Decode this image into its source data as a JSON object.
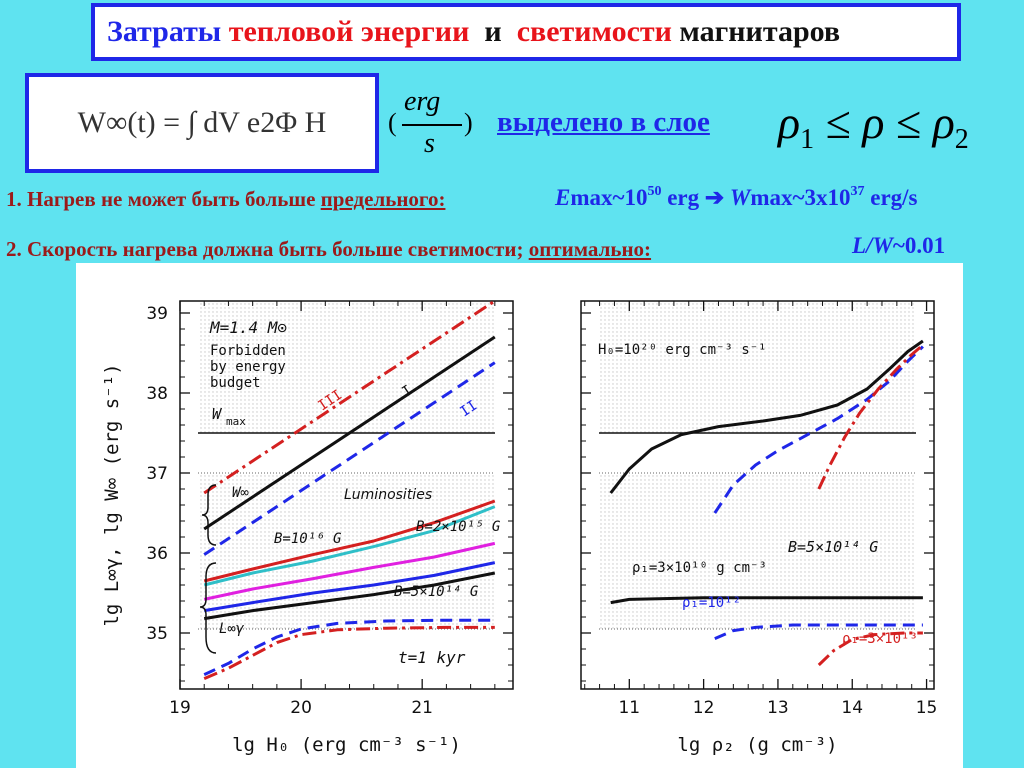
{
  "header": {
    "title_part1": "Затраты ",
    "title_part2": "тепловой энергии ",
    "title_part3": " и ",
    "title_part4": " светимости",
    "title_part5": " магнитаров",
    "colors": {
      "blue": "#1f27e8",
      "red": "#e8141b",
      "dark": "#111111"
    }
  },
  "formula": {
    "text": "W∞(t) = ∫ dV e2Φ H",
    "unit_num": "erg",
    "unit_den": "s",
    "unit_lparen": "(",
    "unit_rparen": ")"
  },
  "layer_text": "выделено в слое",
  "rho_inequality": {
    "rho": "ρ",
    "sub1": "1",
    "sub2": "2",
    "leq": "≤"
  },
  "item1": {
    "text": "1. Нагрев не может быть больше ",
    "underlined": "предельного:",
    "emax_E": "E",
    "emax_text": "max~10",
    "emax_exp": "50",
    "emax_unit": " erg ",
    "arrow": "➔",
    "wmax_W": "W",
    "wmax_text": "max~3x10",
    "wmax_exp": "37",
    "wmax_unit": " erg/s"
  },
  "item2": {
    "text": "2. Скорость нагрева должна быть больше светимости;   ",
    "underlined": "оптимально:",
    "lw": "L/W",
    "lw_value": "~0.01"
  },
  "chart_data": [
    {
      "type": "line",
      "xlabel": "lg H₀   (erg cm⁻³ s⁻¹)",
      "ylabel": "lg L∞γ, lg W∞  (erg s⁻¹)",
      "xlim": [
        19,
        21.75
      ],
      "ylim": [
        34.3,
        39.15
      ],
      "x_ticks": [
        "19",
        "20",
        "21"
      ],
      "y_ticks": [
        "35",
        "36",
        "37",
        "38",
        "39"
      ],
      "grid": false,
      "annotations": {
        "mass": "M=1.4 M⊙",
        "forbidden1": "Forbidden",
        "forbidden2": "by energy",
        "forbidden3": "budget",
        "wmax": "W",
        "wmax_sub": "max",
        "winf": "W∞",
        "lum": "Luminosities",
        "b1": "B=10¹⁶ G",
        "b2": "B=2×10¹⁵ G",
        "b3": "B=5×10¹⁴ G",
        "linf": "L∞γ",
        "time": "t=1  kyr",
        "lab_III": "III",
        "lab_I": "I",
        "lab_II": "II"
      },
      "wmax_level": 37.5,
      "series": [
        {
          "name": "III",
          "color": "#d42020",
          "dash": "14,5,3,5",
          "points": [
            [
              19.2,
              36.75
            ],
            [
              21.6,
              39.15
            ]
          ]
        },
        {
          "name": "I",
          "color": "#111111",
          "dash": "",
          "points": [
            [
              19.2,
              36.3
            ],
            [
              21.6,
              38.7
            ]
          ]
        },
        {
          "name": "II",
          "color": "#1f27e8",
          "dash": "12,7",
          "points": [
            [
              19.2,
              35.98
            ],
            [
              21.6,
              38.38
            ]
          ]
        },
        {
          "color": "#d42020",
          "dash": "",
          "points": [
            [
              19.2,
              35.65
            ],
            [
              19.6,
              35.8
            ],
            [
              20.1,
              35.98
            ],
            [
              20.6,
              36.15
            ],
            [
              21.1,
              36.38
            ],
            [
              21.6,
              36.65
            ]
          ]
        },
        {
          "color": "#2fbfc8",
          "dash": "",
          "points": [
            [
              19.2,
              35.6
            ],
            [
              19.6,
              35.75
            ],
            [
              20.1,
              35.9
            ],
            [
              20.6,
              36.08
            ],
            [
              21.1,
              36.28
            ],
            [
              21.6,
              36.58
            ]
          ]
        },
        {
          "color": "#e020e0",
          "dash": "",
          "points": [
            [
              19.2,
              35.42
            ],
            [
              19.6,
              35.55
            ],
            [
              20.1,
              35.68
            ],
            [
              20.6,
              35.82
            ],
            [
              21.1,
              35.95
            ],
            [
              21.6,
              36.12
            ]
          ]
        },
        {
          "color": "#1f27e8",
          "dash": "",
          "points": [
            [
              19.2,
              35.28
            ],
            [
              19.6,
              35.38
            ],
            [
              20.1,
              35.5
            ],
            [
              20.6,
              35.6
            ],
            [
              21.1,
              35.72
            ],
            [
              21.6,
              35.88
            ]
          ]
        },
        {
          "color": "#111111",
          "dash": "",
          "points": [
            [
              19.2,
              35.18
            ],
            [
              19.6,
              35.28
            ],
            [
              20.1,
              35.38
            ],
            [
              20.6,
              35.48
            ],
            [
              21.1,
              35.6
            ],
            [
              21.6,
              35.75
            ]
          ]
        },
        {
          "color": "#1f27e8",
          "dash": "12,7",
          "points": [
            [
              19.2,
              34.48
            ],
            [
              19.4,
              34.62
            ],
            [
              19.6,
              34.8
            ],
            [
              19.8,
              34.95
            ],
            [
              20.0,
              35.05
            ],
            [
              20.3,
              35.12
            ],
            [
              20.7,
              35.15
            ],
            [
              21.2,
              35.16
            ],
            [
              21.6,
              35.16
            ]
          ]
        },
        {
          "color": "#d42020",
          "dash": "14,5,3,5",
          "points": [
            [
              19.2,
              34.43
            ],
            [
              19.4,
              34.56
            ],
            [
              19.6,
              34.72
            ],
            [
              19.8,
              34.88
            ],
            [
              20.0,
              34.98
            ],
            [
              20.3,
              35.04
            ],
            [
              20.7,
              35.06
            ],
            [
              21.2,
              35.07
            ],
            [
              21.6,
              35.07
            ]
          ]
        }
      ]
    },
    {
      "type": "line",
      "xlabel": "lg ρ₂   (g cm⁻³)",
      "xlim": [
        10.35,
        15.1
      ],
      "ylim": [
        34.3,
        39.15
      ],
      "x_ticks": [
        "11",
        "12",
        "13",
        "14",
        "15"
      ],
      "grid": false,
      "annotations": {
        "h0": "H₀=10²⁰  erg cm⁻³ s⁻¹",
        "b": "B=5×10¹⁴  G",
        "rho_a": "ρ₁=3×10¹⁰  g cm⁻³",
        "rho_b": "ρ₁=10¹²",
        "rho_c": "ρ₁=3×10¹³"
      },
      "wmax_level": 37.5,
      "series": [
        {
          "color": "#111111",
          "dash": "",
          "points": [
            [
              10.75,
              36.75
            ],
            [
              11.0,
              37.05
            ],
            [
              11.3,
              37.3
            ],
            [
              11.7,
              37.48
            ],
            [
              12.2,
              37.58
            ],
            [
              12.8,
              37.65
            ],
            [
              13.3,
              37.72
            ],
            [
              13.8,
              37.85
            ],
            [
              14.2,
              38.05
            ],
            [
              14.5,
              38.3
            ],
            [
              14.75,
              38.52
            ],
            [
              14.95,
              38.65
            ]
          ]
        },
        {
          "color": "#1f27e8",
          "dash": "12,7",
          "points": [
            [
              12.15,
              36.5
            ],
            [
              12.4,
              36.85
            ],
            [
              12.7,
              37.1
            ],
            [
              13.0,
              37.28
            ],
            [
              13.4,
              37.48
            ],
            [
              13.8,
              37.68
            ],
            [
              14.2,
              37.92
            ],
            [
              14.5,
              38.15
            ],
            [
              14.75,
              38.4
            ],
            [
              14.95,
              38.58
            ]
          ]
        },
        {
          "color": "#d42020",
          "dash": "14,5,3,5",
          "points": [
            [
              13.55,
              36.8
            ],
            [
              13.7,
              37.1
            ],
            [
              13.9,
              37.45
            ],
            [
              14.1,
              37.75
            ],
            [
              14.35,
              38.05
            ],
            [
              14.6,
              38.3
            ],
            [
              14.8,
              38.48
            ],
            [
              14.95,
              38.6
            ]
          ]
        },
        {
          "color": "#111111",
          "dash": "",
          "points": [
            [
              10.75,
              35.38
            ],
            [
              11.0,
              35.42
            ],
            [
              12.0,
              35.44
            ],
            [
              13.0,
              35.44
            ],
            [
              14.0,
              35.44
            ],
            [
              14.95,
              35.44
            ]
          ]
        },
        {
          "color": "#1f27e8",
          "dash": "12,7",
          "points": [
            [
              12.15,
              34.93
            ],
            [
              12.4,
              35.03
            ],
            [
              12.7,
              35.07
            ],
            [
              13.2,
              35.1
            ],
            [
              14.0,
              35.1
            ],
            [
              14.95,
              35.1
            ]
          ]
        },
        {
          "color": "#d42020",
          "dash": "14,5,3,5",
          "points": [
            [
              13.55,
              34.6
            ],
            [
              13.75,
              34.78
            ],
            [
              14.0,
              34.92
            ],
            [
              14.3,
              34.98
            ],
            [
              14.7,
              35.0
            ],
            [
              14.95,
              35.0
            ]
          ]
        }
      ]
    }
  ]
}
